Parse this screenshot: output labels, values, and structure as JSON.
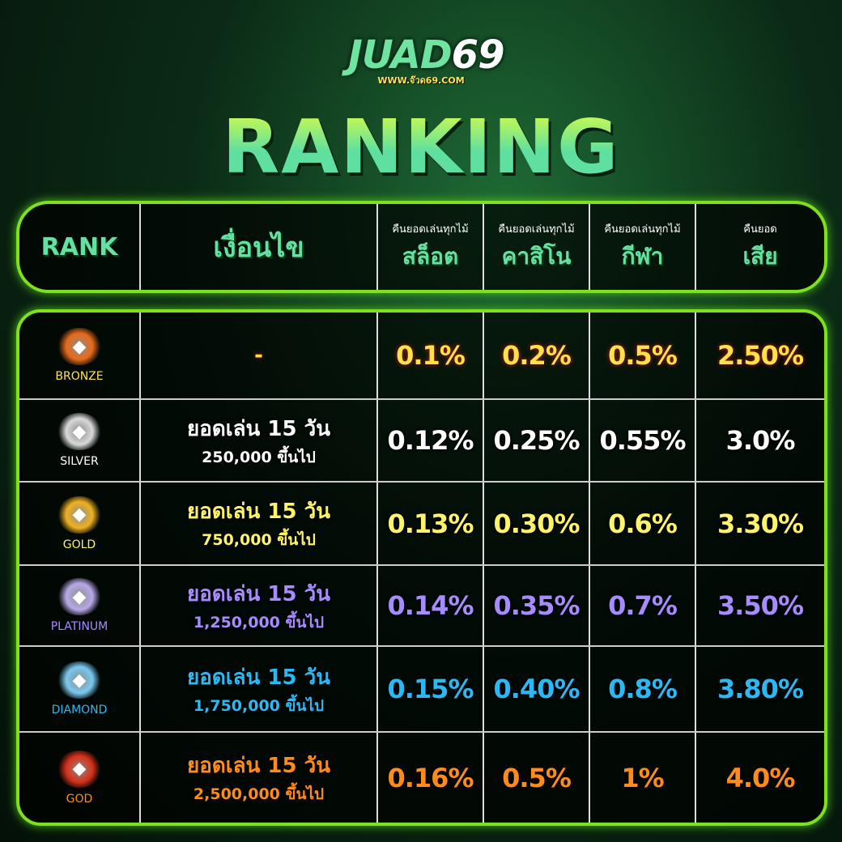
{
  "logo": {
    "brand_main": "JUAD",
    "brand_num": "69",
    "url": "WWW.จ๊วด69.COM"
  },
  "title": "RANKING",
  "header": {
    "rank": "RANK",
    "condition": "เงื่อนไข",
    "columns": [
      {
        "small": "คืนยอดเล่นทุกไม้",
        "big": "สล็อต"
      },
      {
        "small": "คืนยอดเล่นทุกไม้",
        "big": "คาสิโน"
      },
      {
        "small": "คืนยอดเล่นทุกไม้",
        "big": "กีฬา"
      },
      {
        "small": "คืนยอด",
        "big": "เสีย"
      }
    ]
  },
  "rows": [
    {
      "rank": "BRONZE",
      "color": "#ffe24a",
      "badge_color": "#e86a1a",
      "condition_line1": "-",
      "condition_line2": "",
      "values": [
        "0.1%",
        "0.2%",
        "0.5%",
        "2.50%"
      ]
    },
    {
      "rank": "SILVER",
      "color": "#ffffff",
      "badge_color": "#d8d8d8",
      "condition_line1": "ยอดเล่น 15 วัน",
      "condition_line2": "250,000 ขึ้นไป",
      "values": [
        "0.12%",
        "0.25%",
        "0.55%",
        "3.0%"
      ]
    },
    {
      "rank": "GOLD",
      "color": "#fff36a",
      "badge_color": "#f0b020",
      "condition_line1": "ยอดเล่น 15 วัน",
      "condition_line2": "750,000 ขึ้นไป",
      "values": [
        "0.13%",
        "0.30%",
        "0.6%",
        "3.30%"
      ]
    },
    {
      "rank": "PLATINUM",
      "color": "#a78cff",
      "badge_color": "#b8a8e8",
      "condition_line1": "ยอดเล่น 15 วัน",
      "condition_line2": "1,250,000 ขึ้นไป",
      "values": [
        "0.14%",
        "0.35%",
        "0.7%",
        "3.50%"
      ]
    },
    {
      "rank": "DIAMOND",
      "color": "#2cb8f2",
      "badge_color": "#7ac8f0",
      "condition_line1": "ยอดเล่น 15 วัน",
      "condition_line2": "1,750,000 ขึ้นไป",
      "values": [
        "0.15%",
        "0.40%",
        "0.8%",
        "3.80%"
      ]
    },
    {
      "rank": "GOD",
      "color": "#ff8c1a",
      "badge_color": "#d8301a",
      "condition_line1": "ยอดเล่น 15 วัน",
      "condition_line2": "2,500,000 ขึ้นไป",
      "values": [
        "0.16%",
        "0.5%",
        "1%",
        "4.0%"
      ]
    }
  ]
}
